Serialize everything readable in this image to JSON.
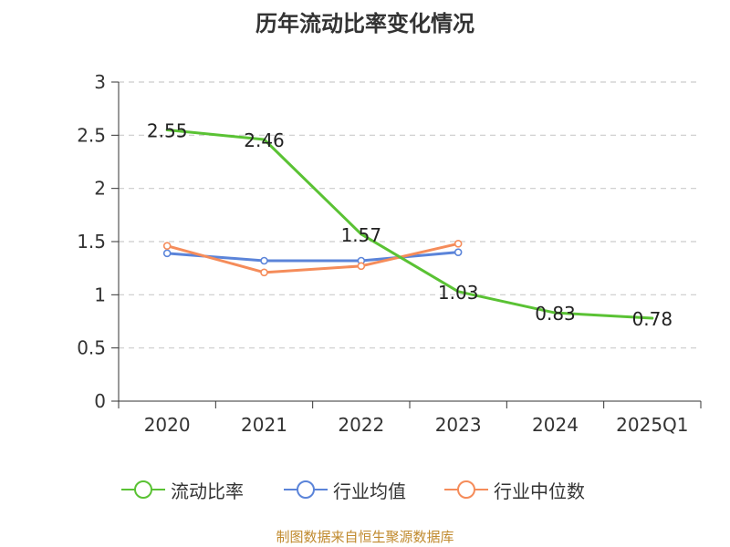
{
  "chart_data": {
    "type": "line",
    "title": "历年流动比率变化情况",
    "categories": [
      "2020",
      "2021",
      "2022",
      "2023",
      "2024",
      "2025Q1"
    ],
    "ylim": [
      0,
      3
    ],
    "yticks": [
      "0",
      "0.5",
      "1",
      "1.5",
      "2",
      "2.5",
      "3"
    ],
    "grid": true,
    "legend_position": "bottom",
    "series": [
      {
        "name": "流动比率",
        "color": "#5ac234",
        "values": [
          2.55,
          2.46,
          1.57,
          1.03,
          0.83,
          0.78
        ],
        "labels": [
          "2.55",
          "2.46",
          "1.57",
          "1.03",
          "0.83",
          "0.78"
        ],
        "markers": false
      },
      {
        "name": "行业均值",
        "color": "#5b84d9",
        "values": [
          1.39,
          1.32,
          1.32,
          1.4,
          null,
          null
        ],
        "markers": true
      },
      {
        "name": "行业中位数",
        "color": "#f58c5a",
        "values": [
          1.46,
          1.21,
          1.27,
          1.48,
          null,
          null
        ],
        "markers": true
      }
    ]
  },
  "footer": "制图数据来自恒生聚源数据库"
}
